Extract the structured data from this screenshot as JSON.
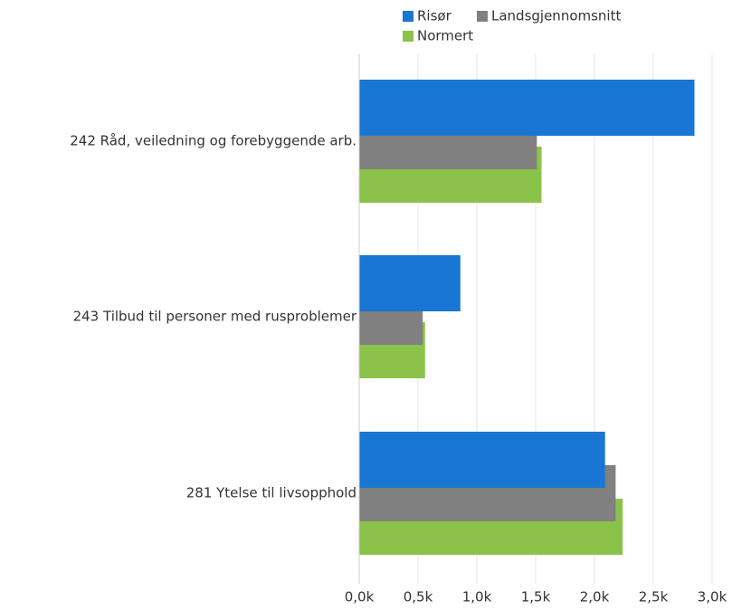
{
  "chart_data": {
    "type": "bar",
    "orientation": "horizontal",
    "categories": [
      "242 Råd, veiledning og forebyggende arb.",
      "243 Tilbud til personer med rusproblemer",
      "281 Ytelse til livsopphold"
    ],
    "series": [
      {
        "name": "Risør",
        "color": "#1976d2",
        "values": [
          2850,
          860,
          2090
        ]
      },
      {
        "name": "Landsgjennomsnitt",
        "color": "#808080",
        "values": [
          1510,
          540,
          2180
        ]
      },
      {
        "name": "Normert",
        "color": "#8bc34a",
        "values": [
          1550,
          560,
          2240
        ]
      }
    ],
    "xlim": [
      0,
      3000
    ],
    "xticks": [
      {
        "value": 0,
        "label": "0,0k"
      },
      {
        "value": 500,
        "label": "0,5k"
      },
      {
        "value": 1000,
        "label": "1,0k"
      },
      {
        "value": 1500,
        "label": "1,5k"
      },
      {
        "value": 2000,
        "label": "2,0k"
      },
      {
        "value": 2500,
        "label": "2,5k"
      },
      {
        "value": 3000,
        "label": "3,0k"
      }
    ],
    "grid": true,
    "legend": "top"
  }
}
